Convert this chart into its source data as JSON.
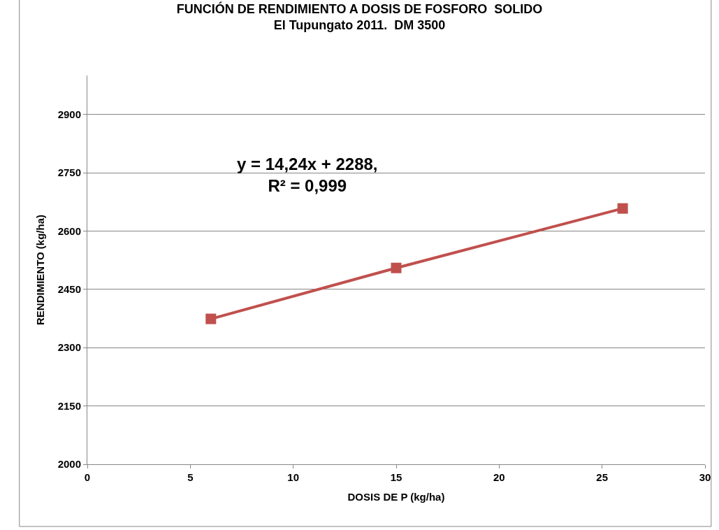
{
  "chart_data": {
    "type": "line",
    "title": "FUNCIÓN DE RENDIMIENTO A DOSIS DE FOSFORO  SOLIDO",
    "subtitle": "El Tupungato 2011.  DM 3500",
    "xlabel": "DOSIS DE P (kg/ha)",
    "ylabel": "RENDIMIENTO (kg/ha)",
    "x": [
      6,
      15,
      26
    ],
    "series": [
      {
        "color": "#c0504d",
        "values": [
          2374,
          2505,
          2658
        ]
      }
    ],
    "xlim": [
      0,
      30
    ],
    "xticks": [
      0,
      5,
      10,
      15,
      20,
      25,
      30
    ],
    "ylim": [
      2000,
      3000
    ],
    "yticks": [
      2000,
      2150,
      2300,
      2450,
      2600,
      2750,
      2900
    ],
    "grid": "y",
    "marker": "square",
    "line_style": "solid",
    "annotations": [
      "y = 14,24x + 2288,\nR² = 0,999"
    ]
  }
}
